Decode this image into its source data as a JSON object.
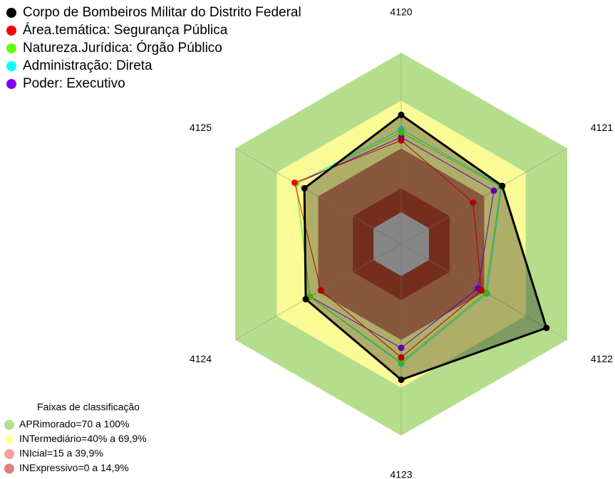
{
  "chart_data": {
    "type": "radar",
    "categories": [
      "4120",
      "4121",
      "4122",
      "4123",
      "4124",
      "4125"
    ],
    "ylim": [
      -20,
      100
    ],
    "series": [
      {
        "name": "Corpo de Bombeiros Militar do Distrito Federal",
        "color": "#000000",
        "values": [
          61,
          53,
          85,
          65,
          49,
          50
        ]
      },
      {
        "name": "Área.temática: Segurança Pública",
        "color": "#ff0000",
        "values": [
          45,
          32,
          38,
          51,
          38,
          57
        ]
      },
      {
        "name": "Natureza.Jurídica: Órgão Público",
        "color": "#66ff00",
        "values": [
          50,
          52,
          41,
          54,
          46,
          56
        ]
      },
      {
        "name": "Administração: Direta",
        "color": "#00ffff",
        "values": [
          52,
          52.5,
          42,
          55,
          46,
          56
        ]
      },
      {
        "name": "Poder: Executivo",
        "color": "#8000ff",
        "values": [
          47,
          47,
          35.5,
          45,
          46,
          56
        ]
      }
    ],
    "bands_title": "Faixas de classificação",
    "bands": [
      {
        "label": "APRimorado=70 a 100%",
        "min": 70,
        "max": 100,
        "color": "#b5de8c",
        "legend_color": "#b5de8c"
      },
      {
        "label": "INTermediário=40% a 69,9%",
        "min": 40,
        "max": 70,
        "color": "#fafa96",
        "legend_color": "#ffffa6"
      },
      {
        "label": "INIcial=15 a 39,9%",
        "min": 15,
        "max": 40,
        "color": "#c47d55",
        "legend_color": "#f5a0a0"
      },
      {
        "label": "INExpressivo=0 a 14,9%",
        "min": 0,
        "max": 15,
        "color": "#a8432a",
        "legend_color": "#d98080"
      }
    ],
    "center_color": "#c0c0c0"
  }
}
